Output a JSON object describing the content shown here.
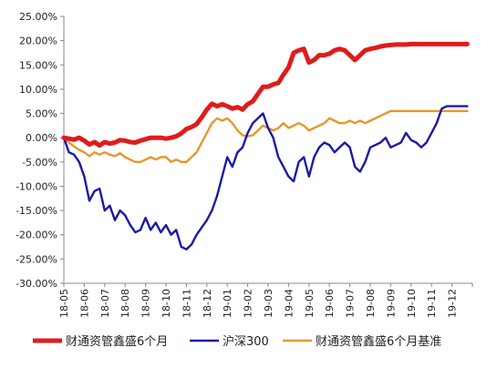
{
  "chart_data": {
    "type": "line",
    "title": "",
    "xlabel": "",
    "ylabel": "",
    "ylim": [
      -30,
      25
    ],
    "ytick_values": [
      -30,
      -25,
      -20,
      -15,
      -10,
      -5,
      0,
      5,
      10,
      15,
      20,
      25
    ],
    "ytick_labels": [
      "-30.00%",
      "-25.00%",
      "-20.00%",
      "-15.00%",
      "-10.00%",
      "-5.00%",
      "0.00%",
      "5.00%",
      "10.00%",
      "15.00%",
      "20.00%",
      "25.00%"
    ],
    "categories": [
      "18-05",
      "18-06",
      "18-07",
      "18-08",
      "18-09",
      "18-10",
      "18-11",
      "18-12",
      "19-01",
      "19-02",
      "19-03",
      "19-04",
      "19-05",
      "19-06",
      "19-07",
      "19-08",
      "19-09",
      "19-10",
      "19-11",
      "19-12"
    ],
    "x": [
      0,
      0.25,
      0.5,
      0.75,
      1,
      1.25,
      1.5,
      1.75,
      2,
      2.25,
      2.5,
      2.75,
      3,
      3.25,
      3.5,
      3.75,
      4,
      4.25,
      4.5,
      4.75,
      5,
      5.25,
      5.5,
      5.75,
      6,
      6.25,
      6.5,
      6.75,
      7,
      7.25,
      7.5,
      7.75,
      8,
      8.25,
      8.5,
      8.75,
      9,
      9.25,
      9.5,
      9.75,
      10,
      10.25,
      10.5,
      10.75,
      11,
      11.25,
      11.5,
      11.75,
      12,
      12.25,
      12.5,
      12.75,
      13,
      13.25,
      13.5,
      13.75,
      14,
      14.25,
      14.5,
      14.75,
      15,
      15.25,
      15.5,
      15.75,
      16,
      16.25,
      16.5,
      16.75,
      17,
      17.25,
      17.5,
      17.75,
      18,
      18.25,
      18.5,
      18.75,
      19,
      19.25,
      19.5,
      19.75
    ],
    "series": [
      {
        "name": "财通资管鑫盛6个月",
        "color": "#e01b1b",
        "values": [
          0,
          -0.2,
          -0.4,
          0,
          -0.6,
          -1.4,
          -0.9,
          -1.6,
          -0.9,
          -1.2,
          -1.0,
          -0.5,
          -0.6,
          -0.9,
          -1.0,
          -0.6,
          -0.3,
          0,
          0,
          0,
          -0.2,
          0,
          0.3,
          0.9,
          1.8,
          2.2,
          2.8,
          4.2,
          5.8,
          7.0,
          6.5,
          6.9,
          6.5,
          6.0,
          6.3,
          5.8,
          6.9,
          7.5,
          9.0,
          10.5,
          10.5,
          11.0,
          11.3,
          13.0,
          14.5,
          17.5,
          18.0,
          18.3,
          15.5,
          16.0,
          17.0,
          17.0,
          17.3,
          18.0,
          18.3,
          18.0,
          17.0,
          16.0,
          17.0,
          18.0,
          18.3,
          18.5,
          18.8,
          19.0,
          19.1,
          19.2,
          19.2,
          19.2,
          19.3,
          19.3,
          19.3,
          19.3,
          19.3,
          19.3,
          19.3,
          19.3,
          19.3,
          19.3,
          19.3,
          19.3
        ]
      },
      {
        "name": "沪深300",
        "color": "#1a1aa6",
        "values": [
          0,
          -3.0,
          -3.5,
          -5.0,
          -8.0,
          -13.0,
          -11.0,
          -10.5,
          -15.0,
          -14.0,
          -17.0,
          -15.0,
          -16.0,
          -18.0,
          -19.5,
          -19.0,
          -16.5,
          -19.0,
          -17.5,
          -19.5,
          -18.0,
          -20.0,
          -19.0,
          -22.5,
          -23.0,
          -22.0,
          -20.0,
          -18.5,
          -17.0,
          -15.0,
          -12.0,
          -8.0,
          -4.0,
          -6.0,
          -3.0,
          -2.0,
          1.0,
          3.0,
          4.0,
          5.0,
          2.0,
          0,
          -4.0,
          -6.0,
          -8.0,
          -9.0,
          -5.0,
          -4.0,
          -8.0,
          -4.0,
          -2.0,
          -1.0,
          -1.5,
          -3.0,
          -2.0,
          -1.0,
          -2.0,
          -6.0,
          -7.0,
          -5.0,
          -2.0,
          -1.5,
          -1.0,
          0,
          -2.0,
          -1.5,
          -1.0,
          1.0,
          -0.5,
          -1.0,
          -2.0,
          -1.0,
          1.0,
          3.0,
          6.0,
          6.5,
          6.5,
          6.5,
          6.5,
          6.5
        ]
      },
      {
        "name": "财通资管鑫盛6个月基准",
        "color": "#e8962c",
        "values": [
          0,
          -1.0,
          -1.8,
          -2.5,
          -3.0,
          -3.8,
          -3.0,
          -3.5,
          -3.0,
          -3.5,
          -3.8,
          -3.2,
          -4.0,
          -4.5,
          -5.0,
          -5.0,
          -4.5,
          -4.0,
          -4.5,
          -4.0,
          -4.0,
          -5.0,
          -4.5,
          -5.0,
          -5.0,
          -4.0,
          -3.0,
          -1.0,
          1.0,
          3.0,
          4.0,
          3.5,
          4.0,
          3.0,
          1.5,
          0.5,
          0.3,
          0.5,
          1.5,
          2.5,
          2.0,
          1.5,
          2.0,
          3.0,
          2.0,
          2.5,
          3.0,
          2.5,
          1.5,
          2.0,
          2.5,
          3.0,
          4.0,
          3.5,
          3.0,
          3.0,
          3.5,
          3.0,
          3.5,
          3.0,
          3.5,
          4.0,
          4.5,
          5.0,
          5.5,
          5.5,
          5.5,
          5.5,
          5.5,
          5.5,
          5.5,
          5.5,
          5.5,
          5.5,
          5.5,
          5.5,
          5.5,
          5.5,
          5.5,
          5.5
        ]
      }
    ],
    "grid": false,
    "legend": "bottom"
  }
}
